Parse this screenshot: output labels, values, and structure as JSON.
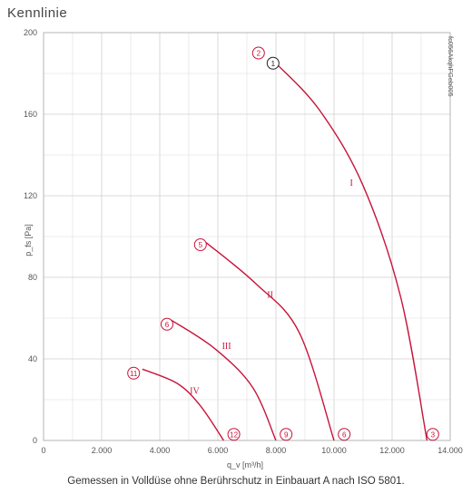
{
  "page": {
    "title": "Kennlinie",
    "caption": "Gemessen in Volldüse ohne Berührschutz in Einbauart A nach ISO 5801."
  },
  "chart_data": {
    "type": "line",
    "title": "Kennlinie",
    "xlabel": "q_v [m³/h]",
    "ylabel": "p_fs [Pa]",
    "xlim": [
      0,
      14000
    ],
    "ylim": [
      0,
      200
    ],
    "x_ticks": [
      0,
      2000,
      4000,
      6000,
      8000,
      10000,
      12000,
      14000
    ],
    "x_tick_labels": [
      "0",
      "2.000",
      "4.000",
      "6.000",
      "8.000",
      "10.000",
      "12.000",
      "14.000"
    ],
    "y_ticks": [
      0,
      40,
      80,
      120,
      160,
      200
    ],
    "y_tick_labels": [
      "0",
      "40",
      "80",
      "120",
      "160",
      "200"
    ],
    "grid": true,
    "side_note": "fc056AkqhFGeb005",
    "line_color": "#c8143c",
    "series": [
      {
        "name": "I",
        "points": [
          [
            8000,
            185
          ],
          [
            9500,
            162
          ],
          [
            11000,
            125
          ],
          [
            12300,
            70
          ],
          [
            13200,
            0
          ]
        ],
        "label_at": [
          10600,
          125
        ]
      },
      {
        "name": "II",
        "points": [
          [
            5600,
            97
          ],
          [
            7300,
            77
          ],
          [
            8800,
            53
          ],
          [
            10000,
            0
          ]
        ],
        "label_at": [
          7800,
          70
        ]
      },
      {
        "name": "III",
        "points": [
          [
            4400,
            59
          ],
          [
            5900,
            45
          ],
          [
            7200,
            26
          ],
          [
            8000,
            0
          ]
        ],
        "label_at": [
          6300,
          45
        ]
      },
      {
        "name": "IV",
        "points": [
          [
            3400,
            35
          ],
          [
            4600,
            28
          ],
          [
            5400,
            17
          ],
          [
            6200,
            0
          ]
        ],
        "label_at": [
          5200,
          23
        ]
      }
    ],
    "markers": [
      {
        "label": "1",
        "x": 7900,
        "y": 185,
        "style": "black"
      },
      {
        "label": "2",
        "x": 7400,
        "y": 190,
        "style": "red"
      },
      {
        "label": "3",
        "x": 13400,
        "y": 3,
        "style": "red"
      },
      {
        "label": "5",
        "x": 5400,
        "y": 96,
        "style": "red"
      },
      {
        "label": "6",
        "x": 4250,
        "y": 57,
        "style": "red"
      },
      {
        "label": "6",
        "x": 10350,
        "y": 3,
        "style": "red"
      },
      {
        "label": "9",
        "x": 8350,
        "y": 3,
        "style": "red"
      },
      {
        "label": "11",
        "x": 3100,
        "y": 33,
        "style": "red"
      },
      {
        "label": "12",
        "x": 6550,
        "y": 3,
        "style": "red"
      }
    ]
  }
}
